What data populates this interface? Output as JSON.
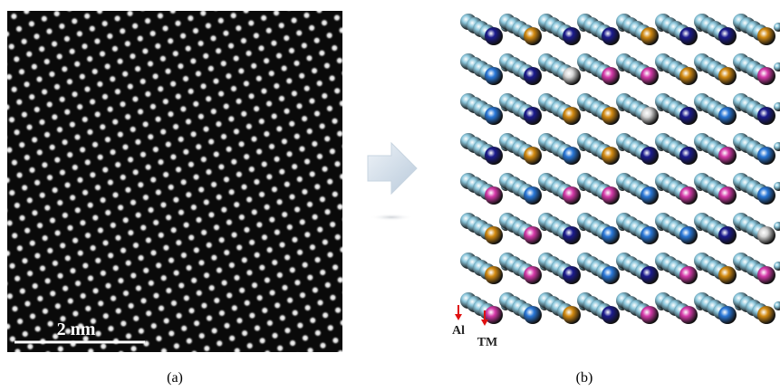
{
  "panel_a": {
    "scale_bar": "2 nm",
    "caption": "(a)"
  },
  "panel_b": {
    "labels": [
      "Al",
      "TM"
    ],
    "caption": "(b)"
  }
}
